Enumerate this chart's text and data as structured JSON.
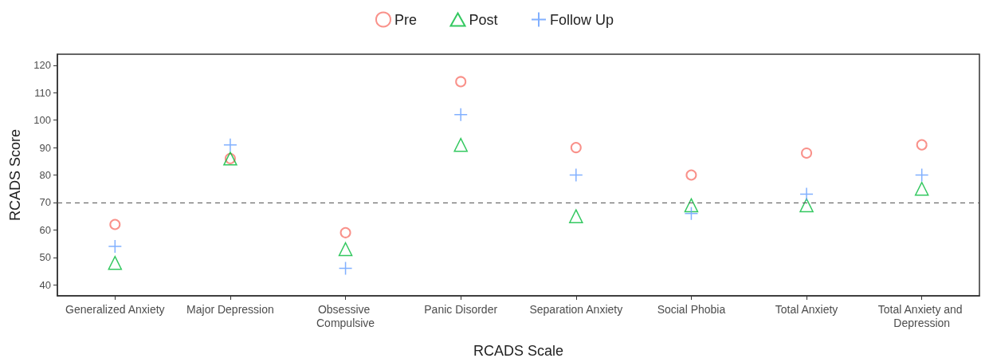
{
  "chart_data": {
    "type": "scatter",
    "xlabel": "RCADS Scale",
    "ylabel": "RCADS Score",
    "categories": [
      "Generalized Anxiety",
      "Major Depression",
      "Obsessive Compulsive",
      "Panic Disorder",
      "Separation Anxiety",
      "Social Phobia",
      "Total Anxiety",
      "Total Anxiety and Depression"
    ],
    "series": [
      {
        "name": "Pre",
        "color": "#f8766d",
        "marker": "circle",
        "values": [
          62,
          86,
          59,
          114,
          90,
          80,
          88,
          91
        ]
      },
      {
        "name": "Post",
        "color": "#00ba38",
        "marker": "triangle",
        "values": [
          48,
          86,
          53,
          91,
          65,
          69,
          69,
          75
        ]
      },
      {
        "name": "Follow Up",
        "color": "#619cff",
        "marker": "cross",
        "values": [
          54,
          91,
          46,
          102,
          80,
          66,
          73,
          80
        ]
      }
    ],
    "ylim": [
      36,
      124
    ],
    "yticks": [
      40,
      50,
      60,
      70,
      80,
      90,
      100,
      110,
      120
    ],
    "ref_lines": [
      {
        "axis": "y",
        "value": 70,
        "color": "#555555",
        "line_style": "dashed"
      }
    ],
    "grid": false,
    "legend": "top"
  }
}
